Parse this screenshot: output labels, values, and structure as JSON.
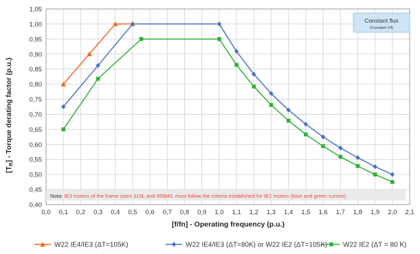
{
  "chart_data": {
    "type": "line",
    "xlabel": "[f/fn] - Operating frequency (p.u.)",
    "ylabel_prefix": "[T",
    "ylabel_sub": "R",
    "ylabel_suffix": "] - Torque derating factor (p.u.)",
    "xlim": [
      0.0,
      2.1
    ],
    "ylim": [
      0.4,
      1.05
    ],
    "x_ticks": [
      "0,0",
      "0,1",
      "0,2",
      "0,3",
      "0,4",
      "0,5",
      "0,6",
      "0,7",
      "0,8",
      "0,9",
      "1,0",
      "1,1",
      "1,2",
      "1,3",
      "1,4",
      "1,5",
      "1,6",
      "1,7",
      "1,8",
      "1,9",
      "2,0",
      "2,1"
    ],
    "y_ticks": [
      "0,40",
      "0,45",
      "0,50",
      "0,55",
      "0,60",
      "0,65",
      "0,70",
      "0,75",
      "0,80",
      "0,85",
      "0,90",
      "0,95",
      "1,00",
      "1,05"
    ],
    "grid": true,
    "legend_position": "bottom",
    "series": [
      {
        "name": "W22 IE4/IE3 (ΔT=105K)",
        "color": "#f26522",
        "marker": "triangle",
        "x": [
          0.1,
          0.25,
          0.4,
          0.5
        ],
        "y": [
          0.8,
          0.9,
          1.0,
          1.0
        ]
      },
      {
        "name": "W22 IE4/IE3 (ΔT=80K) or W22 IE2 (ΔT=105K)",
        "color": "#4a73c4",
        "marker": "diamond",
        "x": [
          0.1,
          0.3,
          0.5,
          1.0,
          1.1,
          1.2,
          1.3,
          1.4,
          1.5,
          1.6,
          1.7,
          1.8,
          1.9,
          2.0
        ],
        "y": [
          0.725,
          0.862,
          1.0,
          1.0,
          0.909,
          0.833,
          0.769,
          0.714,
          0.667,
          0.625,
          0.588,
          0.556,
          0.526,
          0.5
        ]
      },
      {
        "name": "W22 IE2 (ΔT = 80 K)",
        "color": "#2eb135",
        "marker": "square",
        "x": [
          0.1,
          0.3,
          0.55,
          1.0,
          1.1,
          1.2,
          1.3,
          1.4,
          1.5,
          1.6,
          1.7,
          1.8,
          1.9,
          2.0
        ],
        "y": [
          0.65,
          0.818,
          0.95,
          0.95,
          0.864,
          0.792,
          0.731,
          0.679,
          0.633,
          0.594,
          0.559,
          0.528,
          0.5,
          0.475
        ]
      }
    ],
    "note_prefix": "Nota: ",
    "note_body": "IE3 motors of the frame sizes 315L and 355M/L must follow the criteria established for IE2 motors (blue and green curves).",
    "box_title": "Constant flux",
    "box_subtitle": "(Constant V/f)",
    "colors": {
      "grid": "#cfcfcf",
      "axis": "#9a9a9a",
      "note_bg": "#eaeaea",
      "note_prefix": "#333333",
      "note_body": "#e8473c",
      "box_bg": "#cfe5f5",
      "box_border": "#9cc4e4"
    }
  }
}
